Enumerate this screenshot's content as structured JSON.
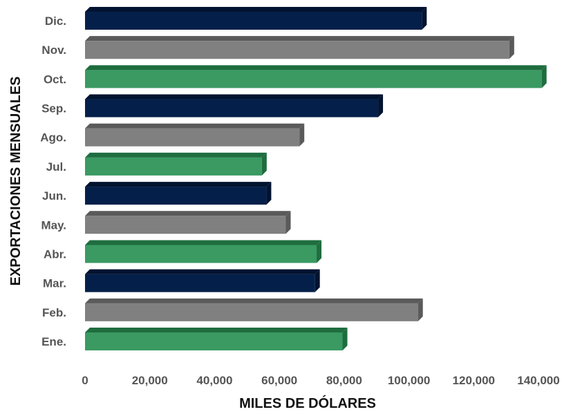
{
  "chart_data": {
    "type": "bar",
    "orientation": "horizontal",
    "categories": [
      "Ene.",
      "Feb.",
      "Mar.",
      "Abr.",
      "May.",
      "Jun.",
      "Jul.",
      "Ago.",
      "Sep.",
      "Oct.",
      "Nov.",
      "Dic."
    ],
    "values": [
      79500,
      102800,
      71000,
      71500,
      62000,
      56000,
      54600,
      66200,
      90500,
      141000,
      131000,
      104000
    ],
    "bar_colors": [
      "#3a9a62",
      "#808080",
      "#04204a",
      "#3a9a62",
      "#808080",
      "#04204a",
      "#3a9a62",
      "#808080",
      "#04204a",
      "#3a9a62",
      "#808080",
      "#04204a"
    ],
    "bar_side_colors": [
      "#1f6d3f",
      "#5a5a5a",
      "#021330",
      "#1f6d3f",
      "#5a5a5a",
      "#021330",
      "#1f6d3f",
      "#5a5a5a",
      "#021330",
      "#1f6d3f",
      "#5a5a5a",
      "#021330"
    ],
    "x_ticks": [
      0,
      20000,
      40000,
      60000,
      80000,
      100000,
      120000,
      140000
    ],
    "x_tick_labels": [
      "0",
      "20,000",
      "40,000",
      "60,000",
      "80,000",
      "100,000",
      "120,000",
      "140,000"
    ],
    "xlim": [
      0,
      140000
    ],
    "title": "",
    "xlabel": "MILES DE DÓLARES",
    "ylabel": "EXPORTACIONES MENSUALES",
    "grid": false,
    "legend": "none"
  }
}
